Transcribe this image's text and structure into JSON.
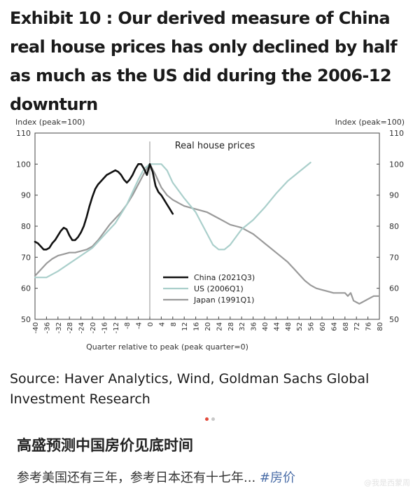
{
  "exhibit": {
    "title": "Exhibit 10 : Our derived measure of China real house prices has only declined by half as much as the US did during the 2006-12 downturn"
  },
  "chart_data": {
    "type": "line",
    "title": "Real house prices",
    "xlabel": "Quarter relative to peak (peak quarter=0)",
    "ylabel_left": "Index (peak=100)",
    "ylabel_right": "Index (peak=100)",
    "xlim": [
      -40,
      80
    ],
    "ylim": [
      50,
      110
    ],
    "x_ticks": [
      -40,
      -36,
      -32,
      -28,
      -24,
      -20,
      -16,
      -12,
      -8,
      -4,
      0,
      4,
      8,
      12,
      16,
      20,
      24,
      28,
      32,
      36,
      40,
      44,
      48,
      52,
      56,
      60,
      64,
      68,
      72,
      76,
      80
    ],
    "y_ticks": [
      50,
      60,
      70,
      80,
      90,
      100,
      110
    ],
    "peak_marker_x": 0,
    "grid": false,
    "legend_position": "bottom-center",
    "series": [
      {
        "name": "China (2021Q3)",
        "color": "#111111",
        "x": [
          -40,
          -39,
          -38,
          -37,
          -36,
          -35,
          -34,
          -33,
          -32,
          -31,
          -30,
          -29,
          -28,
          -27,
          -26,
          -25,
          -24,
          -23,
          -22,
          -21,
          -20,
          -19,
          -18,
          -17,
          -16,
          -15,
          -14,
          -13,
          -12,
          -11,
          -10,
          -9,
          -8,
          -7,
          -6,
          -5,
          -4,
          -3,
          -2,
          -1,
          0,
          1,
          2,
          3,
          4,
          5,
          6,
          7,
          8
        ],
        "y": [
          75,
          74.5,
          73.5,
          72.5,
          72.5,
          73,
          74.5,
          75.5,
          77,
          78.5,
          79.5,
          79,
          77,
          75.5,
          75.5,
          76.5,
          78,
          80,
          83,
          86.5,
          89.5,
          92,
          93.5,
          94.5,
          95.5,
          96.5,
          97,
          97.5,
          98,
          97.5,
          96.5,
          95,
          94,
          95,
          96.5,
          98.5,
          100,
          100,
          98.5,
          96.5,
          100,
          97.5,
          93,
          91,
          90,
          88.5,
          87,
          85.5,
          84
        ]
      },
      {
        "name": "US (2006Q1)",
        "color": "#aacfcb",
        "x": [
          -40,
          -36,
          -32,
          -28,
          -24,
          -20,
          -16,
          -12,
          -8,
          -4,
          -2,
          0,
          2,
          4,
          6,
          8,
          12,
          16,
          20,
          22,
          24,
          26,
          28,
          32,
          36,
          40,
          44,
          48,
          52,
          56
        ],
        "y": [
          63.5,
          63.5,
          65.5,
          68,
          70.5,
          73,
          77,
          81,
          87,
          95,
          98.5,
          100,
          100,
          100,
          98,
          94,
          89,
          84.5,
          77.5,
          74,
          72.5,
          72.5,
          74,
          79,
          82,
          86,
          90.5,
          94.5,
          97.5,
          100.5
        ]
      },
      {
        "name": "Japan (1991Q1)",
        "color": "#9a9a9a",
        "x": [
          -40,
          -38,
          -36,
          -34,
          -32,
          -30,
          -28,
          -26,
          -24,
          -22,
          -20,
          -18,
          -16,
          -14,
          -12,
          -10,
          -8,
          -6,
          -4,
          -2,
          0,
          2,
          4,
          6,
          8,
          10,
          12,
          14,
          16,
          18,
          20,
          22,
          24,
          26,
          28,
          30,
          32,
          34,
          36,
          38,
          40,
          42,
          44,
          46,
          48,
          50,
          52,
          54,
          56,
          58,
          60,
          62,
          64,
          66,
          68,
          69,
          70,
          71,
          72,
          73,
          74,
          76,
          78,
          80
        ],
        "y": [
          64,
          66,
          68,
          69.5,
          70.5,
          71,
          71.5,
          71.5,
          72,
          72.5,
          73.5,
          75.5,
          78,
          80.5,
          82.5,
          84.5,
          87,
          90,
          93.5,
          97,
          100,
          96.5,
          92.5,
          90,
          88.5,
          87.5,
          86.5,
          86,
          85.5,
          85,
          84.5,
          83.5,
          82.5,
          81.5,
          80.5,
          80,
          79.5,
          78.5,
          77.5,
          76,
          74.5,
          73,
          71.5,
          70,
          68.5,
          66.5,
          64.5,
          62.5,
          61,
          60,
          59.5,
          59,
          58.5,
          58.5,
          58.5,
          57.5,
          58.5,
          56,
          55.5,
          55,
          55.5,
          56.5,
          57.5,
          57.5
        ]
      }
    ]
  },
  "source": {
    "text": "Source: Haver Analytics, Wind, Goldman Sachs Global Investment Research"
  },
  "post": {
    "title": "高盛预测中国房价见底时间",
    "body": "参考美国还有三年，参考日本还有十七年...",
    "hashtag": "#房价",
    "watermark": "@我是西蒙周"
  }
}
